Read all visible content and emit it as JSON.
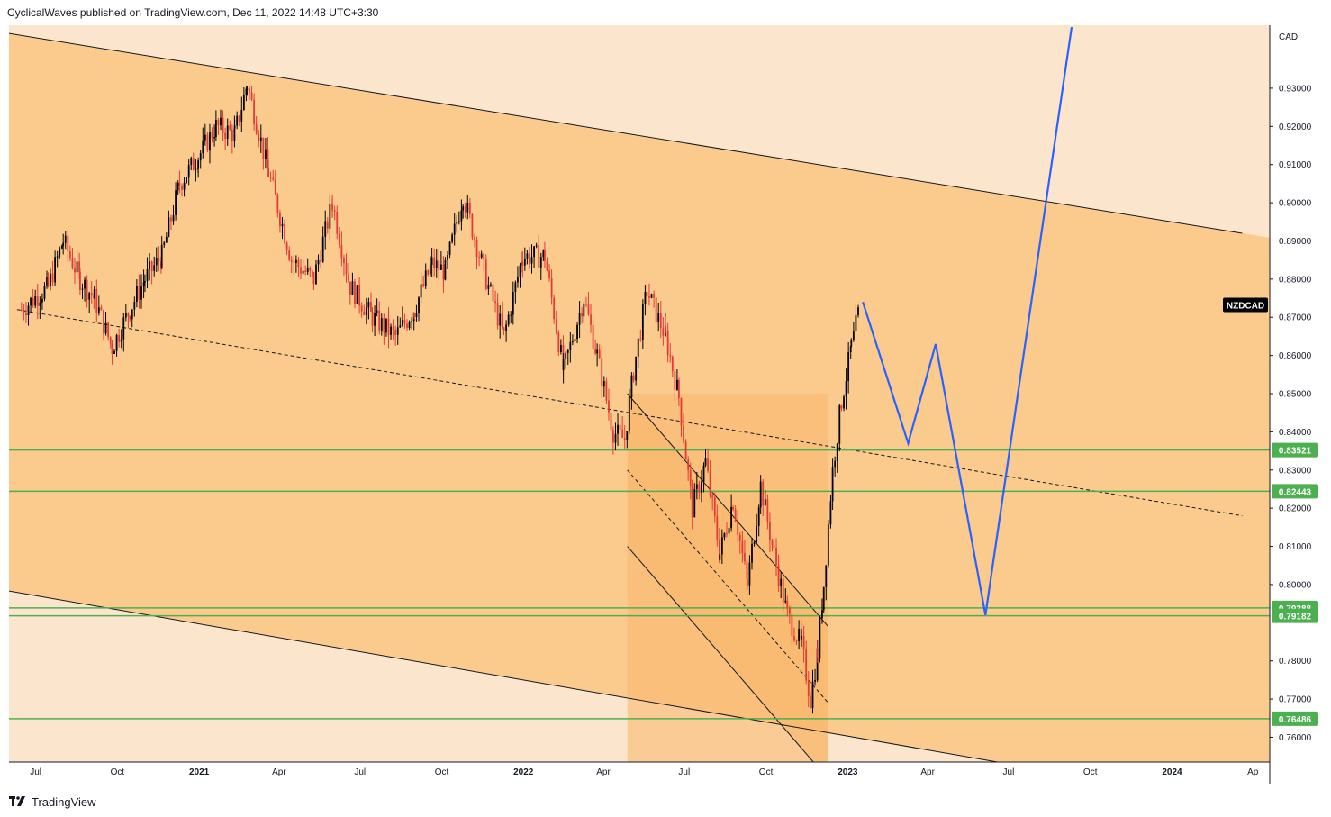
{
  "header": {
    "caption": "CyclicalWaves published on TradingView.com, Dec 11, 2022 14:48 UTC+3:30"
  },
  "footer": {
    "brand": "TradingView"
  },
  "colors": {
    "background_light": "#fce5cd",
    "channel_fill": "#fbcb8e",
    "inner_channel_fill": "#f9b76a",
    "support_line": "#4caf50",
    "projection_line": "#2962ff",
    "candle_up": "#000000",
    "candle_down": "#e53935",
    "symbol_badge": "#000000"
  },
  "chart_data": {
    "type": "candlestick",
    "symbol": "NZDCAD",
    "currency": "CAD",
    "x_tick_labels": [
      "Jul",
      "Oct",
      "2021",
      "Apr",
      "Jul",
      "Oct",
      "2022",
      "Apr",
      "Jul",
      "Oct",
      "2023",
      "Apr",
      "Jul",
      "Oct",
      "2024",
      "Ap"
    ],
    "y_tick_labels": [
      "0.93000",
      "0.92000",
      "0.91000",
      "0.90000",
      "0.89000",
      "0.88000",
      "0.87000",
      "0.86000",
      "0.85000",
      "0.84000",
      "0.83000",
      "0.82000",
      "0.81000",
      "0.80000",
      "0.78000",
      "0.77000",
      "0.76000"
    ],
    "ylim": [
      0.7535,
      0.9465
    ],
    "horizontal_levels": [
      "0.83521",
      "0.82443",
      "0.79388",
      "0.79182",
      "0.76486"
    ],
    "price_path": [
      [
        "2020-06-15",
        0.872
      ],
      [
        "2020-07-15",
        0.878
      ],
      [
        "2020-08-01",
        0.89
      ],
      [
        "2020-08-20",
        0.88
      ],
      [
        "2020-09-05",
        0.875
      ],
      [
        "2020-09-25",
        0.862
      ],
      [
        "2020-10-15",
        0.872
      ],
      [
        "2020-11-01",
        0.88
      ],
      [
        "2020-11-20",
        0.886
      ],
      [
        "2020-12-10",
        0.905
      ],
      [
        "2020-12-31",
        0.912
      ],
      [
        "2021-01-20",
        0.92
      ],
      [
        "2021-02-10",
        0.918
      ],
      [
        "2021-02-24",
        0.931
      ],
      [
        "2021-03-20",
        0.908
      ],
      [
        "2021-04-15",
        0.885
      ],
      [
        "2021-05-10",
        0.88
      ],
      [
        "2021-05-31",
        0.9
      ],
      [
        "2021-06-20",
        0.878
      ],
      [
        "2021-07-15",
        0.87
      ],
      [
        "2021-08-10",
        0.865
      ],
      [
        "2021-08-31",
        0.872
      ],
      [
        "2021-09-20",
        0.884
      ],
      [
        "2021-10-05",
        0.882
      ],
      [
        "2021-10-25",
        0.902
      ],
      [
        "2021-11-20",
        0.88
      ],
      [
        "2021-12-10",
        0.865
      ],
      [
        "2021-12-31",
        0.886
      ],
      [
        "2022-01-25",
        0.886
      ],
      [
        "2022-02-15",
        0.856
      ],
      [
        "2022-03-10",
        0.875
      ],
      [
        "2022-03-25",
        0.86
      ],
      [
        "2022-04-12",
        0.84
      ],
      [
        "2022-04-25",
        0.838
      ],
      [
        "2022-05-05",
        0.856
      ],
      [
        "2022-05-20",
        0.877
      ],
      [
        "2022-06-10",
        0.865
      ],
      [
        "2022-06-25",
        0.849
      ],
      [
        "2022-07-10",
        0.82
      ],
      [
        "2022-07-25",
        0.832
      ],
      [
        "2022-08-10",
        0.808
      ],
      [
        "2022-08-25",
        0.822
      ],
      [
        "2022-09-10",
        0.8
      ],
      [
        "2022-09-25",
        0.826
      ],
      [
        "2022-10-10",
        0.808
      ],
      [
        "2022-10-25",
        0.792
      ],
      [
        "2022-11-10",
        0.784
      ],
      [
        "2022-11-20",
        0.77
      ],
      [
        "2022-11-28",
        0.782
      ],
      [
        "2022-12-05",
        0.8
      ],
      [
        "2022-12-15",
        0.83
      ],
      [
        "2022-12-25",
        0.848
      ],
      [
        "2023-01-05",
        0.862
      ],
      [
        "2023-01-15",
        0.873
      ]
    ],
    "projection_path": [
      [
        "2023-01-18",
        0.874
      ],
      [
        "2023-03-10",
        0.837
      ],
      [
        "2023-04-10",
        0.863
      ],
      [
        "2023-06-05",
        0.792
      ],
      [
        "2023-09-10",
        0.946
      ]
    ],
    "channel": {
      "upper_line": [
        [
          "2020-05-15",
          0.945
        ],
        [
          "2024-03-20",
          0.892
        ]
      ],
      "midline": [
        [
          "2020-06-10",
          0.872
        ],
        [
          "2024-03-20",
          0.818
        ]
      ],
      "lower_line": [
        [
          "2020-05-15",
          0.799
        ],
        [
          "2023-07-01",
          0.753
        ]
      ]
    },
    "inner_channel": {
      "upper_line": [
        [
          "2022-04-28",
          0.85
        ],
        [
          "2022-12-10",
          0.789
        ]
      ],
      "midline": [
        [
          "2022-04-28",
          0.83
        ],
        [
          "2022-12-10",
          0.769
        ]
      ],
      "lower_line": [
        [
          "2022-04-28",
          0.81
        ],
        [
          "2022-12-10",
          0.749
        ]
      ]
    },
    "grid": false,
    "legend": "none"
  }
}
